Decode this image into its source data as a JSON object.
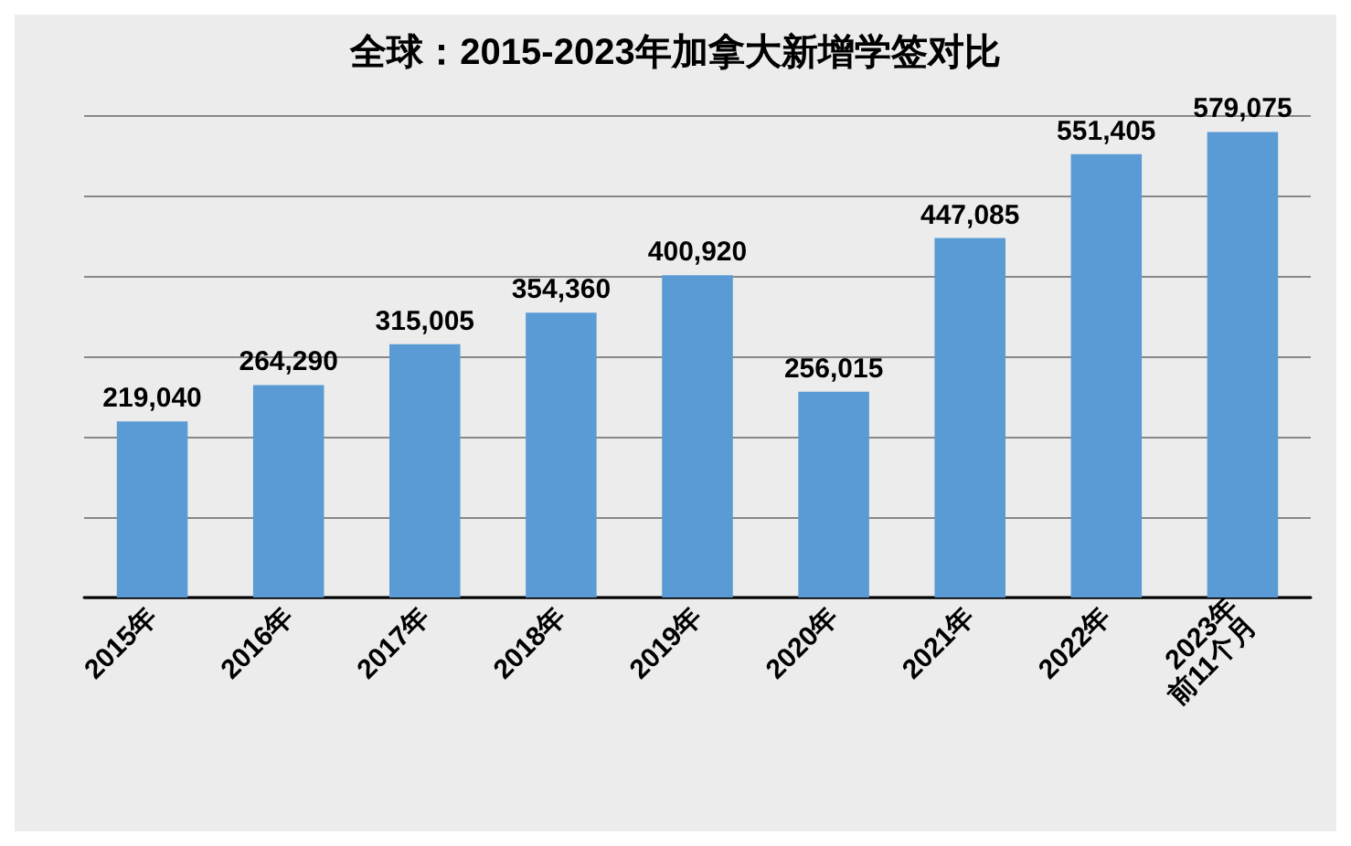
{
  "chart_data": {
    "type": "bar",
    "title": "全球：2015-2023年加拿大新增学签对比",
    "categories": [
      "2015年",
      "2016年",
      "2017年",
      "2018年",
      "2019年",
      "2020年",
      "2021年",
      "2022年",
      "2023年\n前11个月"
    ],
    "values": [
      219040,
      264290,
      315005,
      354360,
      400920,
      256015,
      447085,
      551405,
      579075
    ],
    "color": "#5b9bd5",
    "value_labels": [
      "219,040",
      "264,290",
      "315,005",
      "354,360",
      "400,920",
      "256,015",
      "447,085",
      "551,405",
      "579,075"
    ],
    "ylim": [
      0,
      600000
    ],
    "yticks": [
      {
        "value": 0,
        "label": null
      },
      {
        "value": 100000,
        "label": null
      },
      {
        "value": 200000,
        "label": null
      },
      {
        "value": 300000,
        "label": null
      },
      {
        "value": 400000,
        "label": null
      },
      {
        "value": 500000,
        "label": null
      },
      {
        "value": 600000,
        "label": null
      }
    ],
    "grid": "y",
    "tick_labels": "x"
  }
}
